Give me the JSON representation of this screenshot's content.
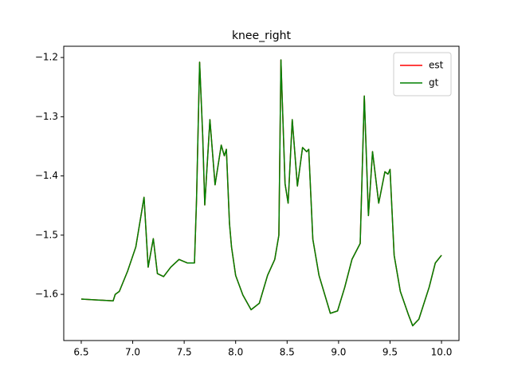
{
  "chart_data": {
    "type": "line",
    "title": "knee_right",
    "x": [
      6.5,
      6.81,
      6.83,
      6.87,
      6.95,
      7.03,
      7.11,
      7.15,
      7.2,
      7.24,
      7.3,
      7.37,
      7.45,
      7.53,
      7.6,
      7.62,
      7.65,
      7.68,
      7.7,
      7.75,
      7.8,
      7.86,
      7.89,
      7.91,
      7.94,
      7.96,
      8.0,
      8.07,
      8.15,
      8.23,
      8.31,
      8.38,
      8.42,
      8.44,
      8.48,
      8.51,
      8.55,
      8.6,
      8.65,
      8.69,
      8.71,
      8.75,
      8.81,
      8.92,
      8.99,
      9.06,
      9.13,
      9.21,
      9.25,
      9.29,
      9.33,
      9.39,
      9.45,
      9.48,
      9.5,
      9.54,
      9.6,
      9.68,
      9.72,
      9.78,
      9.88,
      9.94,
      10.0
    ],
    "series": [
      {
        "name": "est",
        "color": "#ff0000",
        "values": [
          -1.608,
          -1.611,
          -1.6,
          -1.595,
          -1.561,
          -1.52,
          -1.436,
          -1.554,
          -1.506,
          -1.565,
          -1.57,
          -1.554,
          -1.541,
          -1.547,
          -1.547,
          -1.44,
          -1.208,
          -1.332,
          -1.449,
          -1.305,
          -1.415,
          -1.348,
          -1.366,
          -1.355,
          -1.48,
          -1.52,
          -1.568,
          -1.601,
          -1.626,
          -1.615,
          -1.568,
          -1.541,
          -1.5,
          -1.204,
          -1.413,
          -1.446,
          -1.305,
          -1.417,
          -1.352,
          -1.359,
          -1.355,
          -1.507,
          -1.568,
          -1.632,
          -1.628,
          -1.588,
          -1.541,
          -1.514,
          -1.265,
          -1.467,
          -1.359,
          -1.446,
          -1.393,
          -1.397,
          -1.389,
          -1.534,
          -1.595,
          -1.635,
          -1.653,
          -1.642,
          -1.588,
          -1.547,
          -1.534
        ]
      },
      {
        "name": "gt",
        "color": "#008000",
        "values": [
          -1.608,
          -1.611,
          -1.6,
          -1.595,
          -1.561,
          -1.52,
          -1.436,
          -1.554,
          -1.506,
          -1.565,
          -1.57,
          -1.554,
          -1.541,
          -1.547,
          -1.547,
          -1.44,
          -1.208,
          -1.332,
          -1.449,
          -1.305,
          -1.415,
          -1.348,
          -1.366,
          -1.355,
          -1.48,
          -1.52,
          -1.568,
          -1.601,
          -1.626,
          -1.615,
          -1.568,
          -1.541,
          -1.5,
          -1.204,
          -1.413,
          -1.446,
          -1.305,
          -1.417,
          -1.352,
          -1.359,
          -1.355,
          -1.507,
          -1.568,
          -1.632,
          -1.628,
          -1.588,
          -1.541,
          -1.514,
          -1.265,
          -1.467,
          -1.359,
          -1.446,
          -1.393,
          -1.397,
          -1.389,
          -1.534,
          -1.595,
          -1.635,
          -1.653,
          -1.642,
          -1.588,
          -1.547,
          -1.534
        ]
      }
    ],
    "xlim": [
      6.33,
      10.17
    ],
    "xticks": [
      6.5,
      {
        "value": 7,
        "label": "7.0"
      },
      7.5,
      {
        "value": 8,
        "label": "8.0"
      },
      8.5,
      {
        "value": 9,
        "label": "9.0"
      },
      9.5,
      {
        "value": 10,
        "label": "10.0"
      }
    ],
    "ylim": [
      -1.678,
      -1.181
    ],
    "yticks": [
      {
        "value": -1.6,
        "label": "−1.6"
      },
      {
        "value": -1.5,
        "label": "−1.5"
      },
      {
        "value": -1.4,
        "label": "−1.4"
      },
      {
        "value": -1.3,
        "label": "−1.3"
      },
      {
        "value": -1.2,
        "label": "−1.2"
      }
    ],
    "legend": "upper right",
    "grid": false
  }
}
